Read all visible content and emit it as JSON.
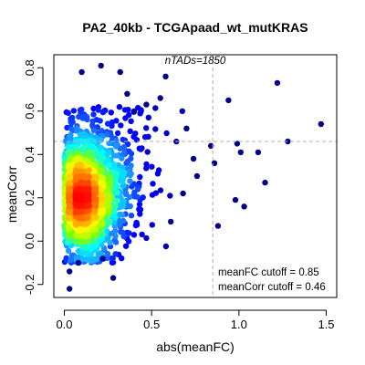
{
  "chart_data": {
    "type": "scatter",
    "title": "PA2_40kb - TCGApaad_wt_mutKRAS",
    "xlabel": "abs(meanFC)",
    "ylabel": "meanCorr",
    "xlim": [
      -0.06,
      1.56
    ],
    "ylim": [
      -0.26,
      0.86
    ],
    "x_ticks": [
      0.0,
      0.5,
      1.0,
      1.5
    ],
    "x_tick_labels": [
      "0.0",
      "0.5",
      "1.0",
      "1.5"
    ],
    "y_ticks": [
      -0.2,
      0.0,
      0.2,
      0.4,
      0.6,
      0.8
    ],
    "y_tick_labels": [
      "-0.2",
      "0.0",
      "0.2",
      "0.4",
      "0.6",
      "0.8"
    ],
    "grid": false,
    "density_colored": true,
    "color_scale": [
      "#00008b",
      "#0000ff",
      "#1e90ff",
      "#00ffff",
      "#7fff00",
      "#ffff00",
      "#ff7f00",
      "#ff0000"
    ],
    "annotations": {
      "n_tads": "nTADs=1850",
      "fc_cutoff": "meanFC cutoff = 0.85",
      "corr_cutoff": "meanCorr cutoff = 0.46"
    },
    "cutoffs": {
      "meanFC": 0.85,
      "meanCorr": 0.46
    },
    "n_points": 1850,
    "outlier_points": [
      {
        "x": 1.47,
        "y": 0.54
      },
      {
        "x": 1.22,
        "y": 0.73
      },
      {
        "x": 0.94,
        "y": 0.65
      },
      {
        "x": 1.28,
        "y": 0.46
      },
      {
        "x": 1.01,
        "y": 0.41
      },
      {
        "x": 1.11,
        "y": 0.41
      },
      {
        "x": 0.99,
        "y": 0.45
      },
      {
        "x": 1.15,
        "y": 0.27
      },
      {
        "x": 0.98,
        "y": 0.19
      },
      {
        "x": 1.03,
        "y": 0.16
      },
      {
        "x": 0.88,
        "y": 0.07
      },
      {
        "x": 0.84,
        "y": 0.44
      },
      {
        "x": 0.86,
        "y": 0.36
      },
      {
        "x": 0.21,
        "y": 0.81
      },
      {
        "x": 0.1,
        "y": 0.78
      },
      {
        "x": 0.32,
        "y": 0.78
      },
      {
        "x": 0.58,
        "y": 0.76
      },
      {
        "x": 0.03,
        "y": -0.22
      },
      {
        "x": 0.08,
        "y": -0.1
      },
      {
        "x": 0.28,
        "y": -0.17
      },
      {
        "x": 0.22,
        "y": -0.08
      },
      {
        "x": 0.36,
        "y": 0.68
      },
      {
        "x": 0.7,
        "y": 0.52
      },
      {
        "x": 0.74,
        "y": 0.38
      },
      {
        "x": 0.76,
        "y": 0.3
      },
      {
        "x": 0.68,
        "y": 0.22
      },
      {
        "x": 0.61,
        "y": 0.09
      },
      {
        "x": 0.47,
        "y": 0.63
      },
      {
        "x": 0.4,
        "y": 0.6
      },
      {
        "x": 0.55,
        "y": 0.66
      },
      {
        "x": 0.03,
        "y": -0.14
      }
    ],
    "density_clusters": [
      {
        "center_x": 0.1,
        "center_y": 0.2,
        "sd_x": 0.1,
        "sd_y": 0.14,
        "count": 1500
      },
      {
        "center_x": 0.25,
        "center_y": 0.3,
        "sd_x": 0.17,
        "sd_y": 0.18,
        "count": 320
      }
    ]
  }
}
